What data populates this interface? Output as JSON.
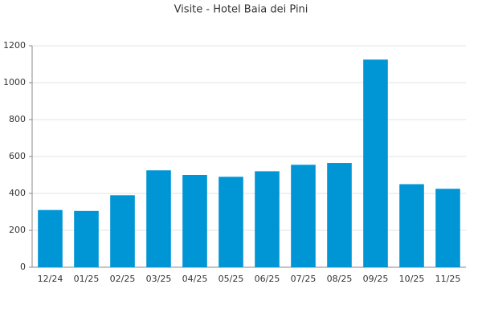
{
  "chart_data": {
    "type": "bar",
    "title": "Visite - Hotel Baia dei Pini",
    "categories": [
      "12/24",
      "01/25",
      "02/25",
      "03/25",
      "04/25",
      "05/25",
      "06/25",
      "07/25",
      "08/25",
      "09/25",
      "10/25",
      "11/25"
    ],
    "values": [
      310,
      305,
      390,
      525,
      500,
      490,
      520,
      555,
      565,
      1125,
      450,
      425
    ],
    "color": "#0095d5",
    "ylim": [
      0,
      1200
    ],
    "yticks": [
      0,
      200,
      400,
      600,
      800,
      1000,
      1200
    ],
    "grid": true
  }
}
